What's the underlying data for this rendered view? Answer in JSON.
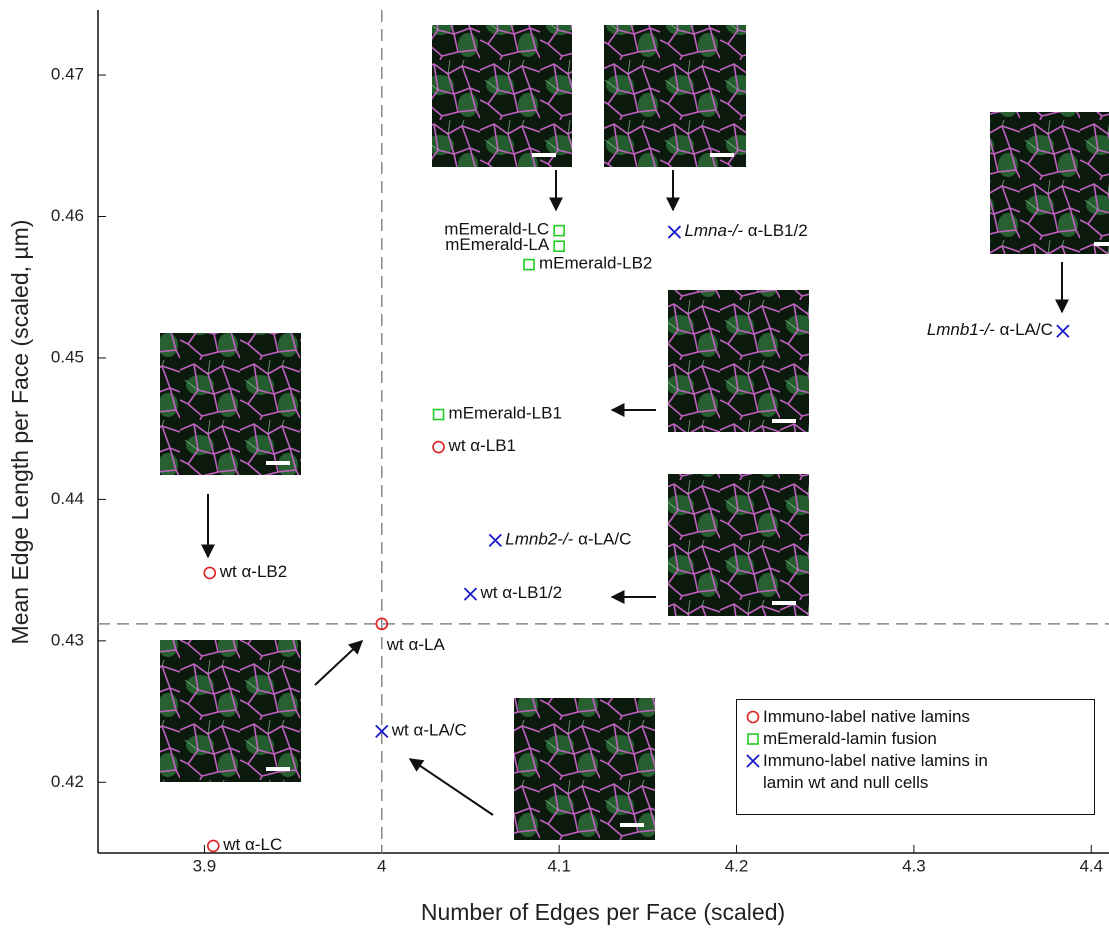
{
  "chart_data": {
    "type": "scatter",
    "xlabel": "Number of Edges per Face (scaled)",
    "ylabel": "Mean Edge Length per Face (scaled, µm)",
    "xlim": [
      3.84,
      4.41
    ],
    "ylim": [
      0.415,
      0.4746
    ],
    "xticks": [
      3.9,
      4,
      4.1,
      4.2,
      4.3,
      4.4
    ],
    "yticks": [
      0.42,
      0.43,
      0.44,
      0.45,
      0.46,
      0.47
    ],
    "vlines": [
      4
    ],
    "hlines": [
      0.4312
    ],
    "series": [
      {
        "name": "Immuno-label native lamins",
        "color": "#e02020",
        "marker": "circle",
        "x": [
          3.903,
          4.0,
          4.032,
          3.905
        ],
        "y": [
          0.4348,
          0.4312,
          0.4437,
          0.4155
        ],
        "labels": [
          "wt α-LB2",
          "wt α-LA",
          "wt α-LB1",
          "wt α-LC"
        ]
      },
      {
        "name": "mEmerald-lamin fusion",
        "color": "#22cc22",
        "marker": "square",
        "x": [
          4.1,
          4.1,
          4.083,
          4.032
        ],
        "y": [
          0.459,
          0.4579,
          0.4566,
          0.446
        ],
        "labels": [
          "mEmerald-LC",
          "mEmerald-LA",
          "mEmerald-LB2",
          "mEmerald-LB1"
        ]
      },
      {
        "name": "Immuno-label native lamins in lamin wt and null cells",
        "color": "#1a1acc",
        "marker": "x",
        "x": [
          4.165,
          4.384,
          4.064,
          4.05,
          4.0
        ],
        "y": [
          0.4589,
          0.4519,
          0.4371,
          0.4333,
          0.4236
        ],
        "genes": [
          "Lmna-/-",
          "Lmnb1-/-",
          "Lmnb2-/-",
          null,
          null
        ],
        "labels": [
          "α-LB1/2",
          "α-LA/C",
          "α-LA/C",
          "wt α-LB1/2",
          "wt α-LA/C"
        ]
      }
    ]
  }
}
